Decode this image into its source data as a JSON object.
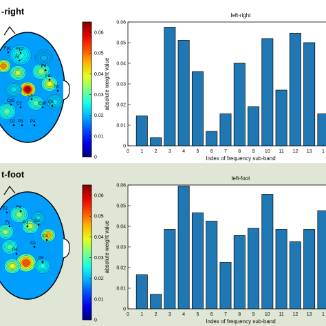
{
  "panels": [
    {
      "label": "-right",
      "bg": "#ffffff"
    },
    {
      "label": "t-foot",
      "bg": "#dfe6d6"
    }
  ],
  "colorbar_ticks": [
    "0.06",
    "0.05",
    "0.04",
    "0.03",
    "0.02",
    "0.01",
    "0"
  ],
  "electrode_labels_top": [
    "Fp1",
    "Fp2",
    "AF",
    "F8",
    "F4",
    "C2",
    "C4",
    "C6",
    "T8",
    "Cp5",
    "Cp6",
    "P8",
    "P4",
    "O2"
  ],
  "electrode_labels_bottom": [
    "F2",
    "F4",
    "Fz",
    "C4",
    "Cp",
    "P2",
    "P4",
    "P8",
    "O2"
  ],
  "chart_data": [
    {
      "type": "bar",
      "title": "left-right",
      "xlabel": "Index of frequency sub-band",
      "ylabel": "absolute weight value",
      "x": [
        1,
        2,
        3,
        4,
        5,
        6,
        7,
        8,
        9,
        10,
        11,
        12,
        13,
        14
      ],
      "values": [
        0.0145,
        0.004,
        0.0575,
        0.0512,
        0.036,
        0.007,
        0.0155,
        0.04,
        0.019,
        0.052,
        0.027,
        0.0545,
        0.05,
        0.0155
      ],
      "xticks": [
        "0",
        "1",
        "2",
        "3",
        "4",
        "5",
        "6",
        "7",
        "8",
        "9",
        "10",
        "11",
        "12",
        "13",
        "1"
      ],
      "yticks": [
        "0",
        "0.01",
        "0.02",
        "0.03",
        "0.04",
        "0.05",
        "0.06"
      ],
      "ylim": [
        0,
        0.06
      ],
      "bar_color": "#1f77b4"
    },
    {
      "type": "bar",
      "title": "left-foot",
      "xlabel": "Index of frequency sub-band",
      "ylabel": "absolute weight value",
      "x": [
        1,
        2,
        3,
        4,
        5,
        6,
        7,
        8,
        9,
        10,
        11,
        12,
        13,
        14
      ],
      "values": [
        0.0165,
        0.007,
        0.0385,
        0.0595,
        0.0465,
        0.0425,
        0.0225,
        0.0355,
        0.039,
        0.0555,
        0.0385,
        0.0325,
        0.0385,
        0.0475
      ],
      "xticks": [
        "0",
        "1",
        "2",
        "3",
        "4",
        "5",
        "6",
        "7",
        "8",
        "9",
        "10",
        "11",
        "12",
        "13",
        "1"
      ],
      "yticks": [
        "0",
        "0.01",
        "0.02",
        "0.03",
        "0.04",
        "0.05",
        "0.06"
      ],
      "ylim": [
        0,
        0.06
      ],
      "bar_color": "#1f77b4"
    }
  ]
}
